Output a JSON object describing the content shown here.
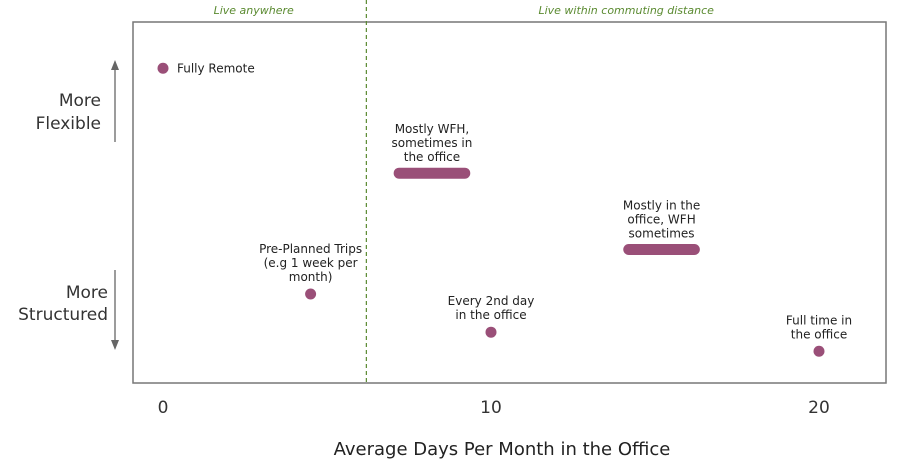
{
  "chart_data": {
    "type": "scatter",
    "xlabel": "Average Days Per Month in the Office",
    "ylabel_top": [
      "More",
      "Flexible"
    ],
    "ylabel_bottom": [
      "More",
      "Structured"
    ],
    "xlim": [
      -1,
      22
    ],
    "ylim": [
      0,
      100
    ],
    "xticks": [
      0,
      10,
      20
    ],
    "xtick_labels": [
      "0",
      "10",
      "20"
    ],
    "divider_x": 6.2,
    "zones": [
      "Live anywhere",
      "Live within commuting distance"
    ],
    "marker_color": "#9a4f78",
    "zone_label_color": "#5a8a30",
    "divider_color": "#5a8a30",
    "frame_color": "#777777",
    "points": [
      {
        "label": [
          "Fully Remote"
        ],
        "x": 0,
        "y": 93,
        "label_pos": "right"
      },
      {
        "label": [
          "Mostly WFH,",
          "sometimes in",
          "the office"
        ],
        "x": 8.2,
        "x_range": [
          7.2,
          9.2
        ],
        "y": 60,
        "label_pos": "above"
      },
      {
        "label": [
          "Mostly in the",
          "office, WFH",
          "sometimes"
        ],
        "x": 15.2,
        "x_range": [
          14.2,
          16.2
        ],
        "y": 36,
        "label_pos": "above"
      },
      {
        "label": [
          "Pre-Planned Trips",
          "(e.g 1 week per",
          "month)"
        ],
        "x": 4.5,
        "y": 22,
        "label_pos": "above"
      },
      {
        "label": [
          "Every 2nd day",
          "in the office"
        ],
        "x": 10,
        "y": 10,
        "label_pos": "above"
      },
      {
        "label": [
          "Full time in",
          "the office"
        ],
        "x": 20,
        "y": 4,
        "label_pos": "above"
      }
    ]
  }
}
